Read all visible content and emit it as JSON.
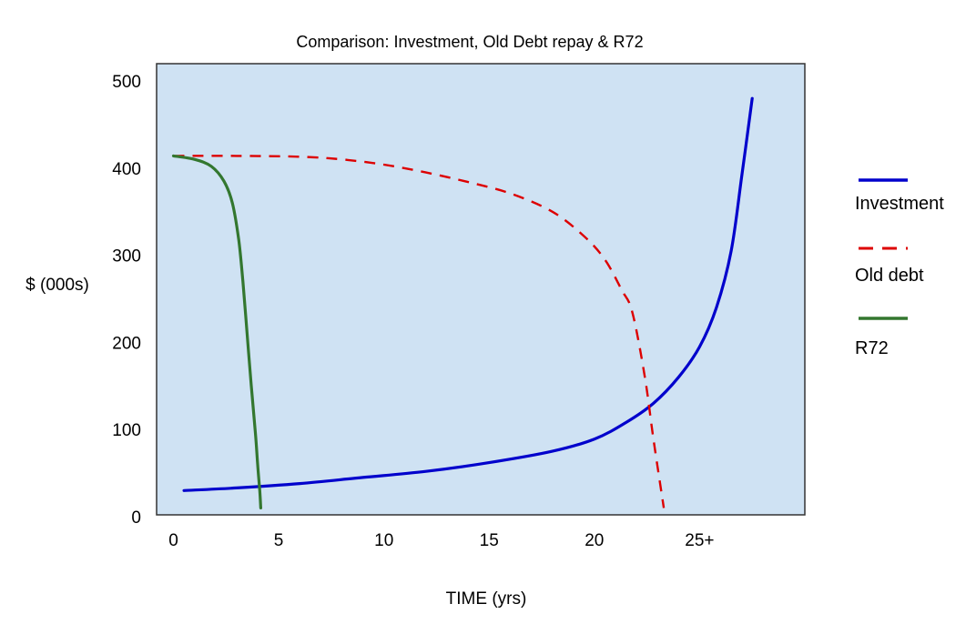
{
  "chart_data": {
    "type": "line",
    "title": "Comparison: Investment, Old Debt repay & R72",
    "xlabel": "TIME (yrs)",
    "ylabel": "$ (000s)",
    "xlim": [
      -0.8,
      30
    ],
    "ylim": [
      0,
      500
    ],
    "x_ticks": [
      {
        "value": 0,
        "label": "0"
      },
      {
        "value": 5,
        "label": "5"
      },
      {
        "value": 10,
        "label": "10"
      },
      {
        "value": 15,
        "label": "15"
      },
      {
        "value": 20,
        "label": "20"
      },
      {
        "value": 25,
        "label": "25+"
      }
    ],
    "y_ticks": [
      {
        "value": 0,
        "label": "0"
      },
      {
        "value": 100,
        "label": "100"
      },
      {
        "value": 200,
        "label": "200"
      },
      {
        "value": 300,
        "label": "300"
      },
      {
        "value": 400,
        "label": "400"
      },
      {
        "value": 500,
        "label": "500"
      }
    ],
    "legend_position": "right",
    "grid": false,
    "plot_background": "#cfe2f3",
    "series": [
      {
        "name": "Investment",
        "color": "#0000cc",
        "style": "solid",
        "points": [
          [
            0.5,
            30
          ],
          [
            3,
            33
          ],
          [
            6,
            38
          ],
          [
            9,
            45
          ],
          [
            12,
            52
          ],
          [
            15,
            62
          ],
          [
            18,
            75
          ],
          [
            20,
            89
          ],
          [
            21.5,
            108
          ],
          [
            22.8,
            130
          ],
          [
            24,
            160
          ],
          [
            25,
            195
          ],
          [
            25.8,
            240
          ],
          [
            26.5,
            305
          ],
          [
            27,
            390
          ],
          [
            27.5,
            480
          ]
        ]
      },
      {
        "name": "Old debt",
        "color": "#dd0000",
        "style": "dashed",
        "points": [
          [
            0,
            414
          ],
          [
            3,
            414
          ],
          [
            6,
            413
          ],
          [
            8,
            410
          ],
          [
            10,
            404
          ],
          [
            12,
            395
          ],
          [
            14,
            384
          ],
          [
            16,
            371
          ],
          [
            18,
            350
          ],
          [
            19.5,
            322
          ],
          [
            20.5,
            295
          ],
          [
            21.3,
            260
          ],
          [
            21.8,
            235
          ],
          [
            22.4,
            160
          ],
          [
            22.8,
            90
          ],
          [
            23.3,
            10
          ]
        ]
      },
      {
        "name": "R72",
        "color": "#33772f",
        "style": "solid",
        "points": [
          [
            0,
            414
          ],
          [
            1,
            410
          ],
          [
            1.8,
            402
          ],
          [
            2.4,
            385
          ],
          [
            2.8,
            360
          ],
          [
            3.1,
            318
          ],
          [
            3.3,
            270
          ],
          [
            3.5,
            210
          ],
          [
            3.7,
            150
          ],
          [
            3.9,
            95
          ],
          [
            4.0,
            60
          ],
          [
            4.1,
            30
          ],
          [
            4.15,
            10
          ]
        ]
      }
    ]
  }
}
